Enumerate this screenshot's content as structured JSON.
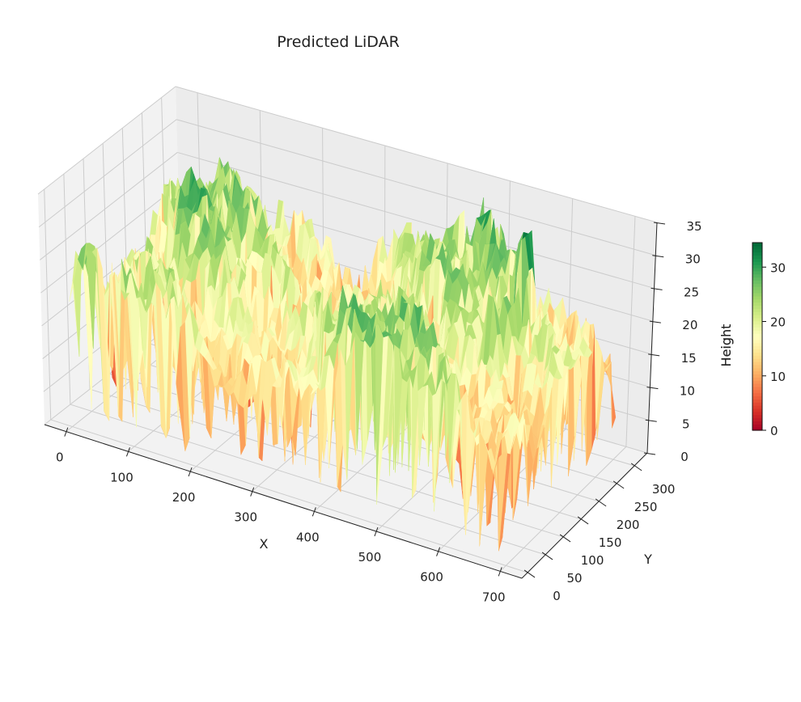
{
  "chart_data": {
    "type": "surface3d",
    "title": "Predicted LiDAR",
    "xlabel": "X",
    "ylabel": "Y",
    "zlabel": "Height",
    "xlim": [
      -35,
      735
    ],
    "ylim": [
      -16,
      336
    ],
    "zlim": [
      0,
      35
    ],
    "xticks": [
      "0",
      "100",
      "200",
      "300",
      "400",
      "500",
      "600",
      "700"
    ],
    "yticks": [
      "0",
      "50",
      "100",
      "150",
      "200",
      "250",
      "300"
    ],
    "zticks": [
      "0",
      "5",
      "10",
      "15",
      "20",
      "25",
      "30",
      "35"
    ],
    "colormap": "RdYlGn",
    "color_range": [
      0,
      34.5
    ],
    "colorbar": {
      "label": "Height",
      "ticks": [
        "0",
        "10",
        "20",
        "30"
      ]
    },
    "grid": true,
    "pane_color": "#f2f2f2",
    "grid_color": "#cccccc"
  }
}
